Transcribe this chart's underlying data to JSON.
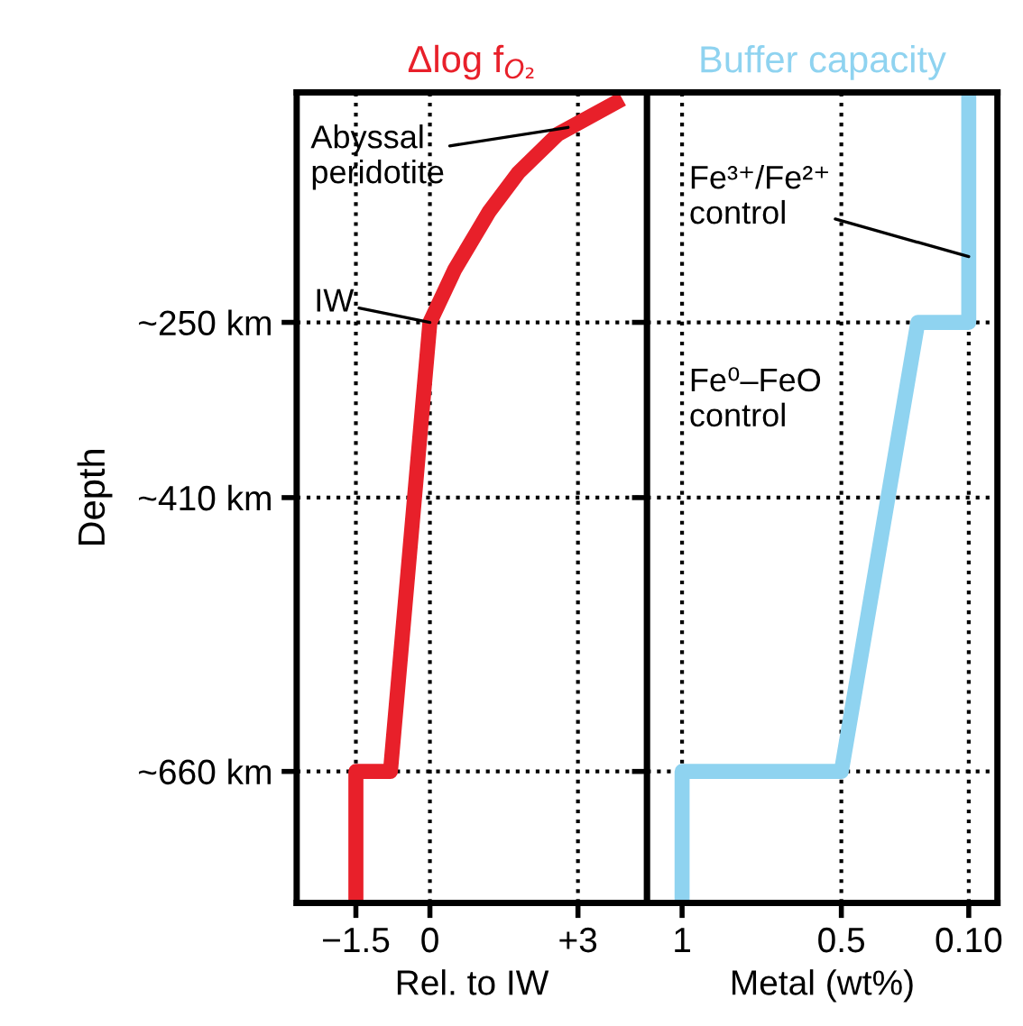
{
  "chart_data": [
    {
      "type": "line",
      "title": "Δlog f$_{O₂}$",
      "xlabel": "Rel. to IW",
      "ylabel": "Depth",
      "series": [
        {
          "color": "#e8202a",
          "x": [
            3.9,
            2.6,
            1.8,
            1.2,
            0.5,
            0,
            -0.8,
            -1.5,
            -1.5
          ],
          "values": [
            46,
            78,
            113,
            149,
            202,
            250,
            660,
            660,
            780
          ]
        }
      ],
      "xlim": [
        -2.7,
        4.4
      ],
      "xticks": [
        {
          "value": -1.5,
          "label": "−1.5"
        },
        0,
        {
          "value": 3,
          "label": "+3"
        }
      ],
      "ylim": [
        780,
        40
      ],
      "yticks": [
        {
          "value": 250,
          "label": "~250 km"
        },
        {
          "value": 410,
          "label": "~410 km"
        },
        {
          "value": 660,
          "label": "~660 km"
        }
      ],
      "grid": true,
      "line_style": "solid",
      "marker": "none",
      "annotations": [
        {
          "text": "Abyssal\nperidotite",
          "x": 2.8,
          "y": 72
        },
        {
          "text": "IW",
          "x": 0,
          "y": 250
        }
      ]
    },
    {
      "type": "line",
      "title": "Buffer capacity",
      "xlabel": "Metal (wt%)",
      "series": [
        {
          "color": "#8fd3f0",
          "x": [
            0.1,
            0.1,
            0.26,
            0.5,
            1.0,
            1.0
          ],
          "values": [
            40,
            250,
            250,
            660,
            660,
            780
          ]
        }
      ],
      "xlim": [
        1.11,
        0.01
      ],
      "xticks": [
        1,
        0.5,
        {
          "value": 0.1,
          "label": "0.10"
        }
      ],
      "ylim": [
        780,
        40
      ],
      "yticks": [
        {
          "value": 250,
          "label": null
        },
        {
          "value": 410,
          "label": null
        },
        {
          "value": 660,
          "label": null
        }
      ],
      "grid": true,
      "line_style": "solid",
      "marker": "none",
      "tick_labels": "x",
      "annotations": [
        {
          "text": "Fe³⁺/Fe²⁺\ncontrol",
          "x": 0.1,
          "y": 190
        },
        "Fe⁰–FeO\ncontrol"
      ]
    }
  ]
}
